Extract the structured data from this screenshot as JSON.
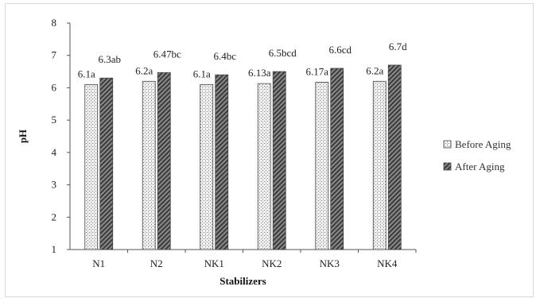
{
  "chart_data": {
    "type": "bar",
    "xlabel": "Stabilizers",
    "ylabel": "pH",
    "ylim": [
      1,
      8
    ],
    "yticks": [
      1,
      2,
      3,
      4,
      5,
      6,
      7,
      8
    ],
    "categories": [
      "N1",
      "N2",
      "NK1",
      "NK2",
      "NK3",
      "NK4"
    ],
    "series": [
      {
        "name": "Before Aging",
        "values": [
          6.1,
          6.2,
          6.1,
          6.13,
          6.17,
          6.2
        ],
        "labels": [
          "6.1a",
          "6.2a",
          "6.1a",
          "6.13a",
          "6.17a",
          "6.2a"
        ]
      },
      {
        "name": "After Aging",
        "values": [
          6.3,
          6.47,
          6.4,
          6.5,
          6.6,
          6.7
        ],
        "labels": [
          "6.3ab",
          "6.47bc",
          "6.4bc",
          "6.5bcd",
          "6.6cd",
          "6.7d"
        ]
      }
    ],
    "legend_position": "right",
    "grid": false
  }
}
